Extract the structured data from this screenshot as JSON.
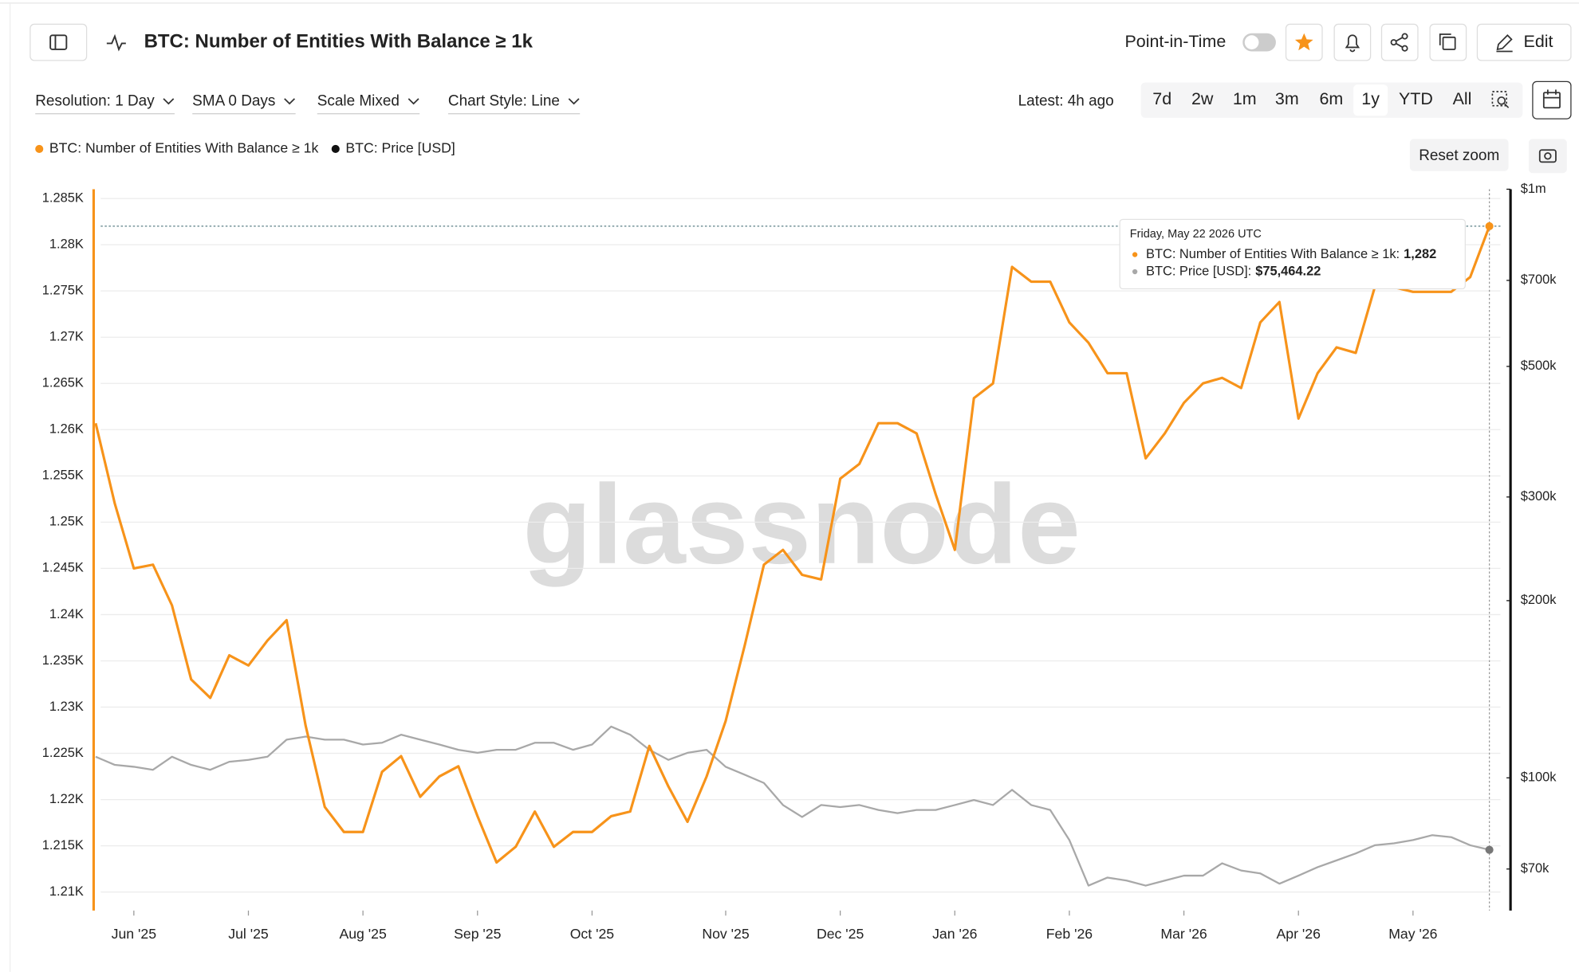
{
  "header": {
    "title": "BTC: Number of Entities With Balance ≥ 1k",
    "point_in_time": "Point-in-Time",
    "edit": "Edit"
  },
  "controls": [
    "Resolution: 1 Day",
    "SMA 0 Days",
    "Scale Mixed",
    "Chart Style: Line"
  ],
  "latest": "Latest: 4h ago",
  "ranges": [
    "7d",
    "2w",
    "1m",
    "3m",
    "6m",
    "1y",
    "YTD",
    "All"
  ],
  "selected_range": "1y",
  "reset_zoom": "Reset zoom",
  "watermark": "glassnode",
  "chart_data": {
    "type": "line",
    "categories": [
      null,
      null,
      "Jun '25",
      null,
      null,
      null,
      null,
      null,
      "Jul '25",
      null,
      null,
      null,
      null,
      null,
      "Aug '25",
      null,
      null,
      null,
      null,
      null,
      "Sep '25",
      null,
      null,
      null,
      null,
      null,
      "Oct '25",
      null,
      null,
      null,
      null,
      null,
      null,
      "Nov '25",
      null,
      null,
      null,
      null,
      null,
      "Dec '25",
      null,
      null,
      null,
      null,
      null,
      "Jan '26",
      null,
      null,
      null,
      null,
      null,
      "Feb '26",
      null,
      null,
      null,
      null,
      null,
      "Mar '26",
      null,
      null,
      null,
      null,
      null,
      "Apr '26",
      null,
      null,
      null,
      null,
      null,
      "May '26",
      null,
      null,
      null,
      null
    ],
    "series": [
      {
        "name": "BTC: Number of Entities With Balance ≥ 1k",
        "color": "#f7931a",
        "values": [
          1260.7,
          1252,
          1245,
          1245.4,
          1241,
          1233,
          1231,
          1235.6,
          1234.5,
          1237.2,
          1239.4,
          1228,
          1219.2,
          1216.5,
          1216.5,
          1223,
          1224.7,
          1220.3,
          1222.5,
          1223.6,
          1218.2,
          1213.2,
          1214.9,
          1218.7,
          1214.9,
          1216.5,
          1216.5,
          1218.2,
          1218.7,
          1225.8,
          1221.4,
          1217.6,
          1222.5,
          1228.5,
          1236.7,
          1245.4,
          1247,
          1244.3,
          1243.8,
          1254.7,
          1256.3,
          1260.7,
          1260.7,
          1259.6,
          1253,
          1247,
          1263.4,
          1265,
          1277.6,
          1276,
          1276,
          1271.6,
          1269.4,
          1266.1,
          1266.1,
          1256.9,
          1259.6,
          1262.9,
          1265,
          1265.6,
          1264.5,
          1271.6,
          1273.8,
          1261.2,
          1266.1,
          1268.9,
          1268.3,
          1275.4,
          1275.4,
          1274.9,
          1274.9,
          1274.9,
          1276.5,
          1282
        ]
      },
      {
        "name": "BTC: Price [USD]",
        "color": "#a8a8a8",
        "axis": "y2",
        "values": [
          108600,
          105200,
          104400,
          103200,
          108600,
          105200,
          103200,
          106500,
          107300,
          108600,
          116100,
          117500,
          116100,
          116100,
          113900,
          114700,
          118400,
          116100,
          113900,
          111600,
          110300,
          111600,
          111600,
          114700,
          114700,
          111600,
          113900,
          122200,
          118400,
          111600,
          107300,
          110300,
          111600,
          104400,
          101200,
          98000,
          89900,
          85800,
          89900,
          89200,
          89900,
          88200,
          87100,
          88200,
          88200,
          89900,
          91700,
          89900,
          95400,
          89900,
          88200,
          78400,
          65600,
          67700,
          66900,
          65600,
          66900,
          68200,
          68200,
          71600,
          69600,
          68800,
          66100,
          68200,
          70500,
          72400,
          74400,
          76800,
          77400,
          78400,
          79900,
          79300,
          76800,
          75464.22
        ]
      }
    ],
    "ylim": [
      1208,
      1286
    ],
    "yticks": [
      {
        "value": 1210,
        "label": "1.21K"
      },
      {
        "value": 1215,
        "label": "1.215K"
      },
      {
        "value": 1220,
        "label": "1.22K"
      },
      {
        "value": 1225,
        "label": "1.225K"
      },
      {
        "value": 1230,
        "label": "1.23K"
      },
      {
        "value": 1235,
        "label": "1.235K"
      },
      {
        "value": 1240,
        "label": "1.24K"
      },
      {
        "value": 1245,
        "label": "1.245K"
      },
      {
        "value": 1250,
        "label": "1.25K"
      },
      {
        "value": 1255,
        "label": "1.255K"
      },
      {
        "value": 1260,
        "label": "1.26K"
      },
      {
        "value": 1265,
        "label": "1.265K"
      },
      {
        "value": 1270,
        "label": "1.27K"
      },
      {
        "value": 1275,
        "label": "1.275K"
      },
      {
        "value": 1280,
        "label": "1.28K"
      },
      {
        "value": 1285,
        "label": "1.285K"
      }
    ],
    "y2lim": [
      59500,
      1000000
    ],
    "y2log": true,
    "y2ticks": [
      {
        "value": 70000,
        "label": "$70k"
      },
      {
        "value": 100000,
        "label": "$100k"
      },
      {
        "value": 200000,
        "label": "$200k"
      },
      {
        "value": 300000,
        "label": "$300k"
      },
      {
        "value": 500000,
        "label": "$500k"
      },
      {
        "value": 700000,
        "label": "$700k"
      },
      {
        "value": 1000000,
        "label": "$1m"
      }
    ],
    "grid": true,
    "legend": "top-left",
    "tooltip": {
      "title": "Friday, May 22 2026 UTC",
      "entries": [
        {
          "label": "BTC: Number of Entities With Balance ≥ 1k:",
          "value": "1,282"
        },
        {
          "label": "BTC: Price [USD]:",
          "value": "$75,464.22"
        }
      ]
    }
  }
}
